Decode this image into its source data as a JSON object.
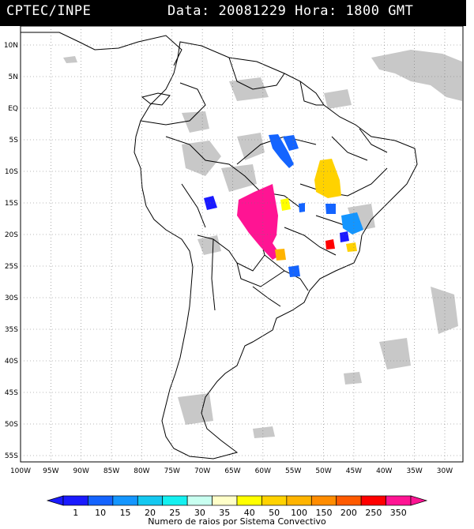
{
  "header": {
    "source": "CPTEC/INPE",
    "date_label": "Data:",
    "date_value": "20081229",
    "hour_label": "Hora:",
    "hour_value": "1800 GMT"
  },
  "map": {
    "lon_labels": [
      "100W",
      "95W",
      "90W",
      "85W",
      "80W",
      "75W",
      "70W",
      "65W",
      "60W",
      "55W",
      "50W",
      "45W",
      "40W",
      "35W",
      "30W"
    ],
    "lat_labels": [
      "10N",
      "5N",
      "EQ",
      "5S",
      "10S",
      "15S",
      "20S",
      "25S",
      "30S",
      "35S",
      "40S",
      "45S",
      "50S",
      "55S"
    ],
    "lon_range": [
      -100,
      -27
    ],
    "lat_range": [
      13,
      -56
    ],
    "grid": "dotted",
    "land_color": "#ffffff",
    "cloud_color": "#c8c8c8"
  },
  "colorbar": {
    "values": [
      "1",
      "10",
      "15",
      "20",
      "25",
      "30",
      "35",
      "40",
      "50",
      "100",
      "150",
      "200",
      "250",
      "350"
    ],
    "colors": [
      "#1a1aff",
      "#1464ff",
      "#1496ff",
      "#14c8f0",
      "#14f0f0",
      "#c8fff0",
      "#ffffc8",
      "#ffff00",
      "#ffd200",
      "#ffb400",
      "#ff8c00",
      "#ff5a00",
      "#ff0000",
      "#ff1493"
    ],
    "title": "Numero de raios por Sistema Convectivo"
  }
}
